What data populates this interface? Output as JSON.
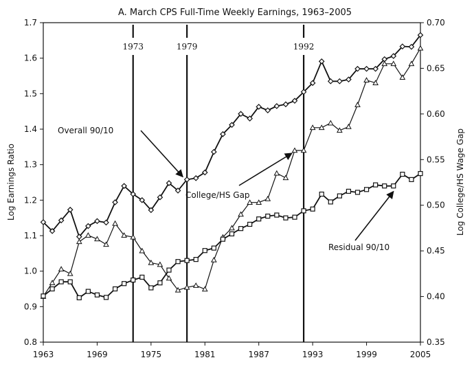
{
  "chart_data": {
    "type": "line",
    "title": "A. March CPS Full-Time Weekly Earnings, 1963–2005",
    "xlabel": "",
    "ylabel": "Log Earnings Ratio",
    "y2label": "Log College/HS Wage Gap",
    "xlim": [
      1963,
      2005
    ],
    "ylim": [
      0.8,
      1.7
    ],
    "y2lim": [
      0.35,
      0.7
    ],
    "x_ticks": [
      "1963",
      "1969",
      "1975",
      "1981",
      "1987",
      "1993",
      "1999",
      "2005"
    ],
    "y_ticks": [
      "0.8",
      "0.9",
      "1.0",
      "1.1",
      "1.2",
      "1.3",
      "1.4",
      "1.5",
      "1.6",
      "1.7"
    ],
    "y2_ticks": [
      "0.35",
      "0.40",
      "0.45",
      "0.50",
      "0.55",
      "0.60",
      "0.65",
      "0.70"
    ],
    "grid": false,
    "legend": "none",
    "vertical_lines": [
      {
        "x": 1973,
        "label": "1973"
      },
      {
        "x": 1979,
        "label": "1979"
      },
      {
        "x": 1992,
        "label": "1992"
      }
    ],
    "x": [
      1963,
      1964,
      1965,
      1966,
      1967,
      1968,
      1969,
      1970,
      1971,
      1972,
      1973,
      1974,
      1975,
      1976,
      1977,
      1978,
      1979,
      1980,
      1981,
      1982,
      1983,
      1984,
      1985,
      1986,
      1987,
      1988,
      1989,
      1990,
      1991,
      1992,
      1993,
      1994,
      1995,
      1996,
      1997,
      1998,
      1999,
      2000,
      2001,
      2002,
      2003,
      2004,
      2005
    ],
    "series": [
      {
        "name": "Overall 90/10",
        "axis": "left",
        "marker": "diamond",
        "values": [
          1.138,
          1.113,
          1.143,
          1.173,
          1.097,
          1.127,
          1.141,
          1.137,
          1.194,
          1.24,
          1.217,
          1.2,
          1.172,
          1.208,
          1.248,
          1.227,
          1.258,
          1.262,
          1.278,
          1.336,
          1.386,
          1.412,
          1.443,
          1.43,
          1.463,
          1.453,
          1.465,
          1.47,
          1.48,
          1.505,
          1.53,
          1.591,
          1.535,
          1.535,
          1.54,
          1.57,
          1.57,
          1.57,
          1.597,
          1.606,
          1.633,
          1.632,
          1.665
        ]
      },
      {
        "name": "College/HS Gap",
        "axis": "right",
        "marker": "triangle",
        "values": [
          0.4,
          0.415,
          0.43,
          0.425,
          0.46,
          0.467,
          0.463,
          0.457,
          0.48,
          0.467,
          0.465,
          0.45,
          0.437,
          0.435,
          0.42,
          0.407,
          0.41,
          0.412,
          0.408,
          0.44,
          0.465,
          0.475,
          0.49,
          0.503,
          0.503,
          0.507,
          0.535,
          0.53,
          0.56,
          0.56,
          0.585,
          0.585,
          0.59,
          0.582,
          0.586,
          0.61,
          0.637,
          0.634,
          0.655,
          0.655,
          0.64,
          0.655,
          0.672
        ]
      },
      {
        "name": "Residual 90/10",
        "axis": "left",
        "marker": "square",
        "values": [
          0.93,
          0.95,
          0.97,
          0.97,
          0.925,
          0.943,
          0.933,
          0.926,
          0.95,
          0.965,
          0.975,
          0.983,
          0.953,
          0.967,
          1.003,
          1.027,
          1.03,
          1.033,
          1.058,
          1.065,
          1.09,
          1.105,
          1.12,
          1.132,
          1.147,
          1.155,
          1.158,
          1.15,
          1.152,
          1.17,
          1.175,
          1.217,
          1.195,
          1.212,
          1.225,
          1.222,
          1.23,
          1.243,
          1.24,
          1.24,
          1.273,
          1.258,
          1.275
        ]
      }
    ],
    "annotations": [
      {
        "text": "Overall 90/10",
        "target_series": "Overall 90/10",
        "target_x": 1979
      },
      {
        "text": "College/HS Gap",
        "target_series": "College/HS Gap",
        "target_x": 1991
      },
      {
        "text": "Residual 90/10",
        "target_series": "Residual 90/10",
        "target_x": 2002
      }
    ]
  }
}
